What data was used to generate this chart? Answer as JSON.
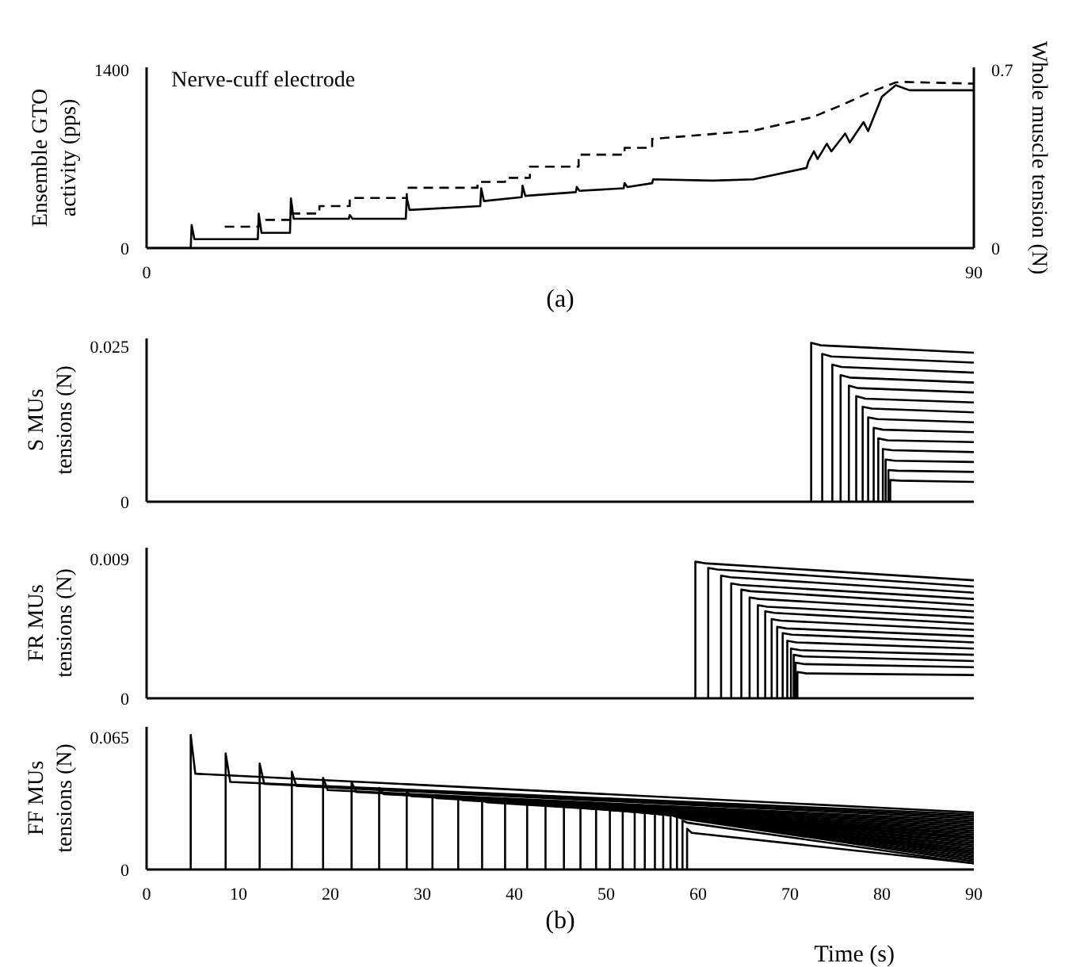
{
  "chart_data": [
    {
      "type": "line",
      "ylabel": "Ensemble GTO activity (pps)",
      "y2label": "Whole muscle tension (N)",
      "annotations": [
        "Nerve-cuff electrode",
        "(a)"
      ],
      "xlim": [
        0,
        90
      ],
      "xticks": [
        0,
        90
      ],
      "ylim": [
        0,
        1420
      ],
      "yticks": [
        0,
        1400
      ],
      "y2lim": [
        0,
        0.71
      ],
      "y2ticks": [
        0,
        0.7
      ],
      "grid": false,
      "series": [
        {
          "color": "#000000",
          "line_style": "solid",
          "x": [
            0,
            4.8,
            4.9,
            5.2,
            12.1,
            12.2,
            12.5,
            15.6,
            15.7,
            16.0,
            22.0,
            22.1,
            22.4,
            28.2,
            28.3,
            28.6,
            36.3,
            36.4,
            36.7,
            40.8,
            40.9,
            41.2,
            46.7,
            46.8,
            47.1,
            51.9,
            52.0,
            52.3,
            55.0,
            55.1,
            61.6,
            66,
            71.8,
            72.0,
            72.6,
            73.0,
            74.0,
            74.5,
            76.0,
            76.5,
            78.0,
            78.5,
            80.0,
            81.5,
            83.0,
            90
          ],
          "values": [
            0,
            0,
            180,
            70,
            70,
            270,
            120,
            120,
            390,
            230,
            230,
            260,
            230,
            230,
            400,
            300,
            330,
            470,
            370,
            400,
            490,
            410,
            440,
            480,
            450,
            470,
            510,
            480,
            510,
            540,
            530,
            540,
            630,
            680,
            760,
            700,
            820,
            760,
            900,
            830,
            990,
            920,
            1190,
            1280,
            1240,
            1240
          ]
        },
        {
          "color": "#000000",
          "line_style": "dashed",
          "axis": "y2",
          "x": [
            8.5,
            12.2,
            12.2,
            15.7,
            15.7,
            18.8,
            18.8,
            22.1,
            22.1,
            28.3,
            28.3,
            36,
            36,
            39,
            39,
            41.7,
            41.7,
            47,
            47,
            52,
            52,
            55,
            55,
            66,
            72.5,
            75.5,
            78.5,
            81.5,
            82.2,
            90
          ],
          "values": [
            0.084,
            0.084,
            0.111,
            0.111,
            0.136,
            0.136,
            0.165,
            0.165,
            0.197,
            0.197,
            0.237,
            0.237,
            0.26,
            0.26,
            0.276,
            0.276,
            0.32,
            0.32,
            0.367,
            0.367,
            0.394,
            0.394,
            0.429,
            0.461,
            0.515,
            0.56,
            0.609,
            0.651,
            0.653,
            0.646
          ]
        }
      ]
    },
    {
      "type": "line",
      "ylabel": "S MUs tensions (N)",
      "xlim": [
        0,
        90
      ],
      "ylim": [
        0,
        0.0263
      ],
      "yticks": [
        0,
        0.025
      ],
      "tick_labels": "y",
      "grid": false,
      "series": [
        {
          "color": "#000000",
          "x": [
            72.3,
            72.3,
            73.3,
            90
          ],
          "values": [
            0,
            0.0256,
            0.0252,
            0.024
          ]
        },
        {
          "color": "#000000",
          "x": [
            73.5,
            73.5,
            74.5,
            90
          ],
          "values": [
            0,
            0.0238,
            0.0234,
            0.0224
          ]
        },
        {
          "color": "#000000",
          "x": [
            74.6,
            74.6,
            75.6,
            90
          ],
          "values": [
            0,
            0.0221,
            0.0217,
            0.0208
          ]
        },
        {
          "color": "#000000",
          "x": [
            75.5,
            75.5,
            76.5,
            90
          ],
          "values": [
            0,
            0.0204,
            0.02,
            0.0192
          ]
        },
        {
          "color": "#000000",
          "x": [
            76.4,
            76.4,
            77.4,
            90
          ],
          "values": [
            0,
            0.0187,
            0.0183,
            0.0176
          ]
        },
        {
          "color": "#000000",
          "x": [
            77.2,
            77.2,
            78.2,
            90
          ],
          "values": [
            0,
            0.017,
            0.0166,
            0.016
          ]
        },
        {
          "color": "#000000",
          "x": [
            77.9,
            77.9,
            78.9,
            90
          ],
          "values": [
            0,
            0.0153,
            0.015,
            0.0144
          ]
        },
        {
          "color": "#000000",
          "x": [
            78.5,
            78.5,
            79.5,
            90
          ],
          "values": [
            0,
            0.0136,
            0.0133,
            0.0128
          ]
        },
        {
          "color": "#000000",
          "x": [
            79.1,
            79.1,
            80.1,
            90
          ],
          "values": [
            0,
            0.0119,
            0.0116,
            0.0112
          ]
        },
        {
          "color": "#000000",
          "x": [
            79.6,
            79.6,
            80.6,
            90
          ],
          "values": [
            0,
            0.0102,
            0.0099,
            0.0096
          ]
        },
        {
          "color": "#000000",
          "x": [
            80.1,
            80.1,
            81.1,
            90
          ],
          "values": [
            0,
            0.0085,
            0.0083,
            0.008
          ]
        },
        {
          "color": "#000000",
          "x": [
            80.4,
            80.4,
            81.4,
            90
          ],
          "values": [
            0,
            0.0068,
            0.0066,
            0.0064
          ]
        },
        {
          "color": "#000000",
          "x": [
            80.7,
            80.7,
            81.7,
            90
          ],
          "values": [
            0,
            0.0051,
            0.005,
            0.0048
          ]
        },
        {
          "color": "#000000",
          "x": [
            80.9,
            80.9,
            81.9,
            90
          ],
          "values": [
            0,
            0.0035,
            0.0034,
            0.0032
          ]
        }
      ]
    },
    {
      "type": "line",
      "ylabel": "FR MUs tensions (N)",
      "xlim": [
        0,
        90
      ],
      "ylim": [
        0,
        0.0097
      ],
      "yticks": [
        0,
        0.009
      ],
      "tick_labels": "y",
      "grid": false,
      "series": [
        {
          "color": "#000000",
          "x": [
            59.7,
            59.7,
            60.7,
            90
          ],
          "values": [
            0,
            0.0088,
            0.0087,
            0.0076
          ]
        },
        {
          "color": "#000000",
          "x": [
            61.1,
            61.1,
            62.1,
            90
          ],
          "values": [
            0,
            0.0084,
            0.0083,
            0.0072
          ]
        },
        {
          "color": "#000000",
          "x": [
            62.5,
            62.5,
            63.5,
            90
          ],
          "values": [
            0,
            0.0079,
            0.0078,
            0.0068
          ]
        },
        {
          "color": "#000000",
          "x": [
            63.6,
            63.6,
            64.6,
            90
          ],
          "values": [
            0,
            0.0074,
            0.0073,
            0.0064
          ]
        },
        {
          "color": "#000000",
          "x": [
            64.7,
            64.7,
            65.7,
            90
          ],
          "values": [
            0,
            0.007,
            0.0069,
            0.006
          ]
        },
        {
          "color": "#000000",
          "x": [
            65.6,
            65.6,
            66.6,
            90
          ],
          "values": [
            0,
            0.0065,
            0.0064,
            0.0056
          ]
        },
        {
          "color": "#000000",
          "x": [
            66.5,
            66.5,
            67.5,
            90
          ],
          "values": [
            0,
            0.006,
            0.0059,
            0.0052
          ]
        },
        {
          "color": "#000000",
          "x": [
            67.3,
            67.3,
            68.3,
            90
          ],
          "values": [
            0,
            0.0056,
            0.0055,
            0.0048
          ]
        },
        {
          "color": "#000000",
          "x": [
            68.0,
            68.0,
            69.0,
            90
          ],
          "values": [
            0,
            0.0051,
            0.005,
            0.0044
          ]
        },
        {
          "color": "#000000",
          "x": [
            68.6,
            68.6,
            69.6,
            90
          ],
          "values": [
            0,
            0.0046,
            0.0045,
            0.004
          ]
        },
        {
          "color": "#000000",
          "x": [
            69.2,
            69.2,
            70.2,
            90
          ],
          "values": [
            0,
            0.0042,
            0.0041,
            0.0036
          ]
        },
        {
          "color": "#000000",
          "x": [
            69.7,
            69.7,
            70.7,
            90
          ],
          "values": [
            0,
            0.0037,
            0.0036,
            0.0032
          ]
        },
        {
          "color": "#000000",
          "x": [
            70.1,
            70.1,
            71.1,
            90
          ],
          "values": [
            0,
            0.0032,
            0.0031,
            0.0028
          ]
        },
        {
          "color": "#000000",
          "x": [
            70.4,
            70.4,
            71.4,
            90
          ],
          "values": [
            0,
            0.0028,
            0.0027,
            0.0024
          ]
        },
        {
          "color": "#000000",
          "x": [
            70.6,
            70.6,
            71.6,
            90
          ],
          "values": [
            0,
            0.0023,
            0.0022,
            0.002
          ]
        },
        {
          "color": "#000000",
          "x": [
            70.8,
            70.8,
            71.8,
            90
          ],
          "values": [
            0,
            0.0017,
            0.0016,
            0.0015
          ]
        }
      ]
    },
    {
      "type": "line",
      "ylabel": "FF MUs tensions (N)",
      "xlabel": "Time (s)",
      "annotations": [
        "(b)"
      ],
      "xlim": [
        0,
        90
      ],
      "xticks": [
        0,
        10,
        20,
        30,
        40,
        50,
        60,
        70,
        80,
        90
      ],
      "ylim": [
        0,
        0.07
      ],
      "yticks": [
        0,
        0.065
      ],
      "grid": false,
      "series": [
        {
          "color": "#000000",
          "x": [
            4.8,
            4.8,
            5.3,
            90
          ],
          "values": [
            0,
            0.066,
            0.047,
            0.028
          ]
        },
        {
          "color": "#000000",
          "x": [
            8.6,
            8.6,
            9.1,
            90
          ],
          "values": [
            0,
            0.057,
            0.043,
            0.027
          ]
        },
        {
          "color": "#000000",
          "x": [
            12.3,
            12.3,
            12.8,
            90
          ],
          "values": [
            0,
            0.052,
            0.042,
            0.026
          ]
        },
        {
          "color": "#000000",
          "x": [
            15.8,
            15.8,
            16.3,
            90
          ],
          "values": [
            0,
            0.048,
            0.041,
            0.025
          ]
        },
        {
          "color": "#000000",
          "x": [
            19.2,
            19.2,
            19.7,
            90
          ],
          "values": [
            0,
            0.045,
            0.039,
            0.024
          ]
        },
        {
          "color": "#000000",
          "x": [
            22.3,
            22.3,
            22.8,
            90
          ],
          "values": [
            0,
            0.043,
            0.038,
            0.023
          ]
        },
        {
          "color": "#000000",
          "x": [
            25.3,
            25.3,
            25.8,
            90
          ],
          "values": [
            0,
            0.04,
            0.037,
            0.022
          ]
        },
        {
          "color": "#000000",
          "x": [
            28.3,
            28.3,
            28.8,
            90
          ],
          "values": [
            0,
            0.038,
            0.036,
            0.021
          ]
        },
        {
          "color": "#000000",
          "x": [
            31.1,
            31.1,
            31.6,
            90
          ],
          "values": [
            0,
            0.036,
            0.035,
            0.02
          ]
        },
        {
          "color": "#000000",
          "x": [
            33.9,
            33.9,
            34.4,
            90
          ],
          "values": [
            0,
            0.035,
            0.034,
            0.019
          ]
        },
        {
          "color": "#000000",
          "x": [
            36.5,
            36.5,
            37.0,
            90
          ],
          "values": [
            0,
            0.034,
            0.033,
            0.018
          ]
        },
        {
          "color": "#000000",
          "x": [
            39.0,
            39.0,
            39.5,
            90
          ],
          "values": [
            0,
            0.034,
            0.033,
            0.017
          ]
        },
        {
          "color": "#000000",
          "x": [
            41.4,
            41.4,
            41.9,
            90
          ],
          "values": [
            0,
            0.033,
            0.032,
            0.016
          ]
        },
        {
          "color": "#000000",
          "x": [
            43.4,
            43.4,
            43.9,
            90
          ],
          "values": [
            0,
            0.033,
            0.032,
            0.015
          ]
        },
        {
          "color": "#000000",
          "x": [
            45.4,
            45.4,
            45.9,
            90
          ],
          "values": [
            0,
            0.032,
            0.031,
            0.014
          ]
        },
        {
          "color": "#000000",
          "x": [
            47.2,
            47.2,
            47.7,
            90
          ],
          "values": [
            0,
            0.032,
            0.031,
            0.013
          ]
        },
        {
          "color": "#000000",
          "x": [
            48.9,
            48.9,
            49.4,
            90
          ],
          "values": [
            0,
            0.031,
            0.03,
            0.012
          ]
        },
        {
          "color": "#000000",
          "x": [
            50.4,
            50.4,
            50.9,
            90
          ],
          "values": [
            0,
            0.031,
            0.03,
            0.011
          ]
        },
        {
          "color": "#000000",
          "x": [
            51.8,
            51.8,
            52.3,
            90
          ],
          "values": [
            0,
            0.03,
            0.029,
            0.01
          ]
        },
        {
          "color": "#000000",
          "x": [
            53.1,
            53.1,
            53.6,
            90
          ],
          "values": [
            0,
            0.03,
            0.029,
            0.009
          ]
        },
        {
          "color": "#000000",
          "x": [
            54.2,
            54.2,
            54.7,
            90
          ],
          "values": [
            0,
            0.029,
            0.028,
            0.008
          ]
        },
        {
          "color": "#000000",
          "x": [
            55.3,
            55.3,
            55.8,
            90
          ],
          "values": [
            0,
            0.029,
            0.028,
            0.007
          ]
        },
        {
          "color": "#000000",
          "x": [
            56.2,
            56.2,
            56.7,
            90
          ],
          "values": [
            0,
            0.028,
            0.027,
            0.006
          ]
        },
        {
          "color": "#000000",
          "x": [
            57.0,
            57.0,
            57.5,
            90
          ],
          "values": [
            0,
            0.027,
            0.026,
            0.005
          ]
        },
        {
          "color": "#000000",
          "x": [
            57.7,
            57.7,
            58.2,
            90
          ],
          "values": [
            0,
            0.026,
            0.025,
            0.004
          ]
        },
        {
          "color": "#000000",
          "x": [
            58.3,
            58.3,
            58.8,
            90
          ],
          "values": [
            0,
            0.024,
            0.023,
            0.003
          ]
        },
        {
          "color": "#000000",
          "x": [
            58.8,
            58.8,
            59.3,
            90
          ],
          "values": [
            0,
            0.02,
            0.018,
            0.003
          ]
        }
      ]
    }
  ]
}
